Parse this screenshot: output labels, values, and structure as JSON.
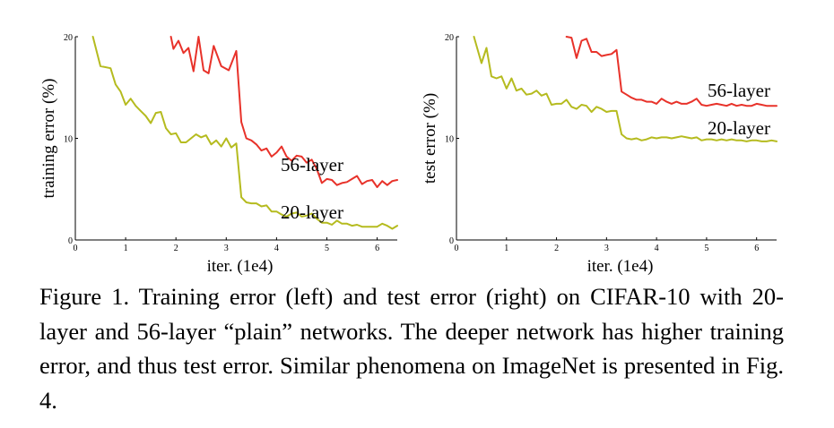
{
  "caption": "Figure 1. Training error (left) and test error (right) on CIFAR-10 with 20-layer and 56-layer “plain” networks. The deeper network has higher training error, and thus test error. Similar phenomena on ImageNet is presented in Fig. 4.",
  "colors": {
    "layer56": "#e8322a",
    "layer20": "#b5bb1f",
    "axis": "#000000"
  },
  "chart_data": [
    {
      "type": "line",
      "title": "",
      "xlabel": "iter. (1e4)",
      "ylabel": "training error (%)",
      "xlim": [
        0,
        6.4
      ],
      "ylim": [
        0,
        20
      ],
      "xticks": [
        0,
        1,
        2,
        3,
        4,
        5,
        6
      ],
      "yticks": [
        0,
        10,
        20
      ],
      "grid": false,
      "series": [
        {
          "name": "56-layer",
          "x": [
            1.9,
            1.95,
            2.05,
            2.15,
            2.25,
            2.35,
            2.45,
            2.55,
            2.65,
            2.75,
            2.9,
            3.05,
            3.2,
            3.3,
            3.4,
            3.5,
            3.6,
            3.7,
            3.8,
            3.9,
            4.0,
            4.1,
            4.2,
            4.3,
            4.4,
            4.5,
            4.6,
            4.7,
            4.8,
            4.9,
            5.0,
            5.1,
            5.2,
            5.3,
            5.4,
            5.5,
            5.6,
            5.7,
            5.8,
            5.9,
            6.0,
            6.1,
            6.2,
            6.3,
            6.4
          ],
          "y": [
            20.0,
            18.8,
            19.6,
            18.4,
            18.9,
            16.6,
            20.0,
            16.7,
            16.4,
            19.1,
            17.1,
            16.7,
            18.6,
            11.6,
            10.0,
            9.8,
            9.4,
            8.8,
            9.0,
            8.2,
            8.6,
            9.2,
            8.2,
            7.8,
            8.3,
            8.2,
            7.6,
            7.9,
            7.0,
            5.6,
            6.0,
            5.9,
            5.4,
            5.6,
            5.7,
            6.0,
            6.3,
            5.5,
            5.8,
            5.9,
            5.2,
            5.8,
            5.4,
            5.8,
            5.9
          ]
        },
        {
          "name": "20-layer",
          "x": [
            0.35,
            0.5,
            0.7,
            0.8,
            0.9,
            1.0,
            1.1,
            1.2,
            1.3,
            1.4,
            1.5,
            1.6,
            1.7,
            1.8,
            1.9,
            2.0,
            2.1,
            2.2,
            2.3,
            2.4,
            2.5,
            2.6,
            2.7,
            2.8,
            2.9,
            3.0,
            3.1,
            3.2,
            3.3,
            3.4,
            3.5,
            3.6,
            3.7,
            3.8,
            3.9,
            4.0,
            4.1,
            4.2,
            4.3,
            4.4,
            4.5,
            4.6,
            4.7,
            4.8,
            4.9,
            5.0,
            5.1,
            5.2,
            5.3,
            5.4,
            5.5,
            5.6,
            5.7,
            5.8,
            5.9,
            6.0,
            6.1,
            6.2,
            6.3,
            6.4
          ],
          "y": [
            20.0,
            17.1,
            16.9,
            15.3,
            14.6,
            13.3,
            13.9,
            13.2,
            12.7,
            12.2,
            11.5,
            12.5,
            12.6,
            11.0,
            10.4,
            10.5,
            9.6,
            9.6,
            10.0,
            10.4,
            10.1,
            10.3,
            9.4,
            9.8,
            9.2,
            10.0,
            9.1,
            9.5,
            4.2,
            3.7,
            3.6,
            3.6,
            3.3,
            3.4,
            2.8,
            2.8,
            2.5,
            2.3,
            2.6,
            2.7,
            2.3,
            2.4,
            2.6,
            2.1,
            1.7,
            1.7,
            1.5,
            1.9,
            1.6,
            1.6,
            1.4,
            1.5,
            1.3,
            1.3,
            1.3,
            1.3,
            1.6,
            1.4,
            1.1,
            1.4
          ]
        }
      ]
    },
    {
      "type": "line",
      "title": "",
      "xlabel": "iter. (1e4)",
      "ylabel": "test error (%)",
      "xlim": [
        0,
        6.4
      ],
      "ylim": [
        0,
        20
      ],
      "xticks": [
        0,
        1,
        2,
        3,
        4,
        5,
        6
      ],
      "yticks": [
        0,
        10,
        20
      ],
      "grid": false,
      "series": [
        {
          "name": "56-layer",
          "x": [
            2.2,
            2.3,
            2.4,
            2.5,
            2.6,
            2.7,
            2.8,
            2.9,
            3.0,
            3.1,
            3.2,
            3.3,
            3.4,
            3.5,
            3.6,
            3.7,
            3.8,
            3.9,
            4.0,
            4.1,
            4.2,
            4.3,
            4.4,
            4.5,
            4.6,
            4.7,
            4.8,
            4.9,
            5.0,
            5.1,
            5.2,
            5.3,
            5.4,
            5.5,
            5.6,
            5.7,
            5.8,
            5.9,
            6.0,
            6.1,
            6.2,
            6.3,
            6.4
          ],
          "y": [
            20.0,
            19.9,
            17.9,
            19.6,
            19.8,
            18.5,
            18.5,
            18.1,
            18.2,
            18.3,
            18.7,
            14.6,
            14.3,
            14.0,
            13.8,
            13.8,
            13.6,
            13.6,
            13.4,
            13.9,
            13.6,
            13.4,
            13.6,
            13.4,
            13.4,
            13.6,
            13.9,
            13.3,
            13.2,
            13.3,
            13.4,
            13.3,
            13.2,
            13.4,
            13.2,
            13.3,
            13.2,
            13.2,
            13.4,
            13.3,
            13.2,
            13.2,
            13.2
          ]
        },
        {
          "name": "20-layer",
          "x": [
            0.35,
            0.5,
            0.6,
            0.7,
            0.8,
            0.9,
            1.0,
            1.1,
            1.2,
            1.3,
            1.4,
            1.5,
            1.6,
            1.7,
            1.8,
            1.9,
            2.0,
            2.1,
            2.2,
            2.3,
            2.4,
            2.5,
            2.6,
            2.7,
            2.8,
            2.9,
            3.0,
            3.1,
            3.2,
            3.3,
            3.4,
            3.5,
            3.6,
            3.7,
            3.8,
            3.9,
            4.0,
            4.1,
            4.2,
            4.3,
            4.4,
            4.5,
            4.6,
            4.7,
            4.8,
            4.9,
            5.0,
            5.1,
            5.2,
            5.3,
            5.4,
            5.5,
            5.6,
            5.7,
            5.8,
            5.9,
            6.0,
            6.1,
            6.2,
            6.3,
            6.4
          ],
          "y": [
            20.0,
            17.4,
            18.9,
            16.1,
            15.9,
            16.1,
            14.9,
            15.9,
            14.7,
            14.9,
            14.3,
            14.4,
            14.7,
            14.2,
            14.4,
            13.3,
            13.4,
            13.4,
            13.8,
            13.1,
            12.9,
            13.3,
            13.2,
            12.6,
            13.1,
            12.9,
            12.6,
            12.7,
            12.7,
            10.4,
            10.0,
            9.9,
            10.0,
            9.8,
            9.9,
            10.1,
            10.0,
            10.1,
            10.1,
            10.0,
            10.1,
            10.2,
            10.1,
            10.0,
            10.1,
            9.8,
            9.9,
            9.9,
            9.8,
            9.9,
            9.8,
            9.9,
            9.8,
            9.8,
            9.7,
            9.8,
            9.8,
            9.7,
            9.7,
            9.8,
            9.7
          ]
        }
      ]
    }
  ]
}
